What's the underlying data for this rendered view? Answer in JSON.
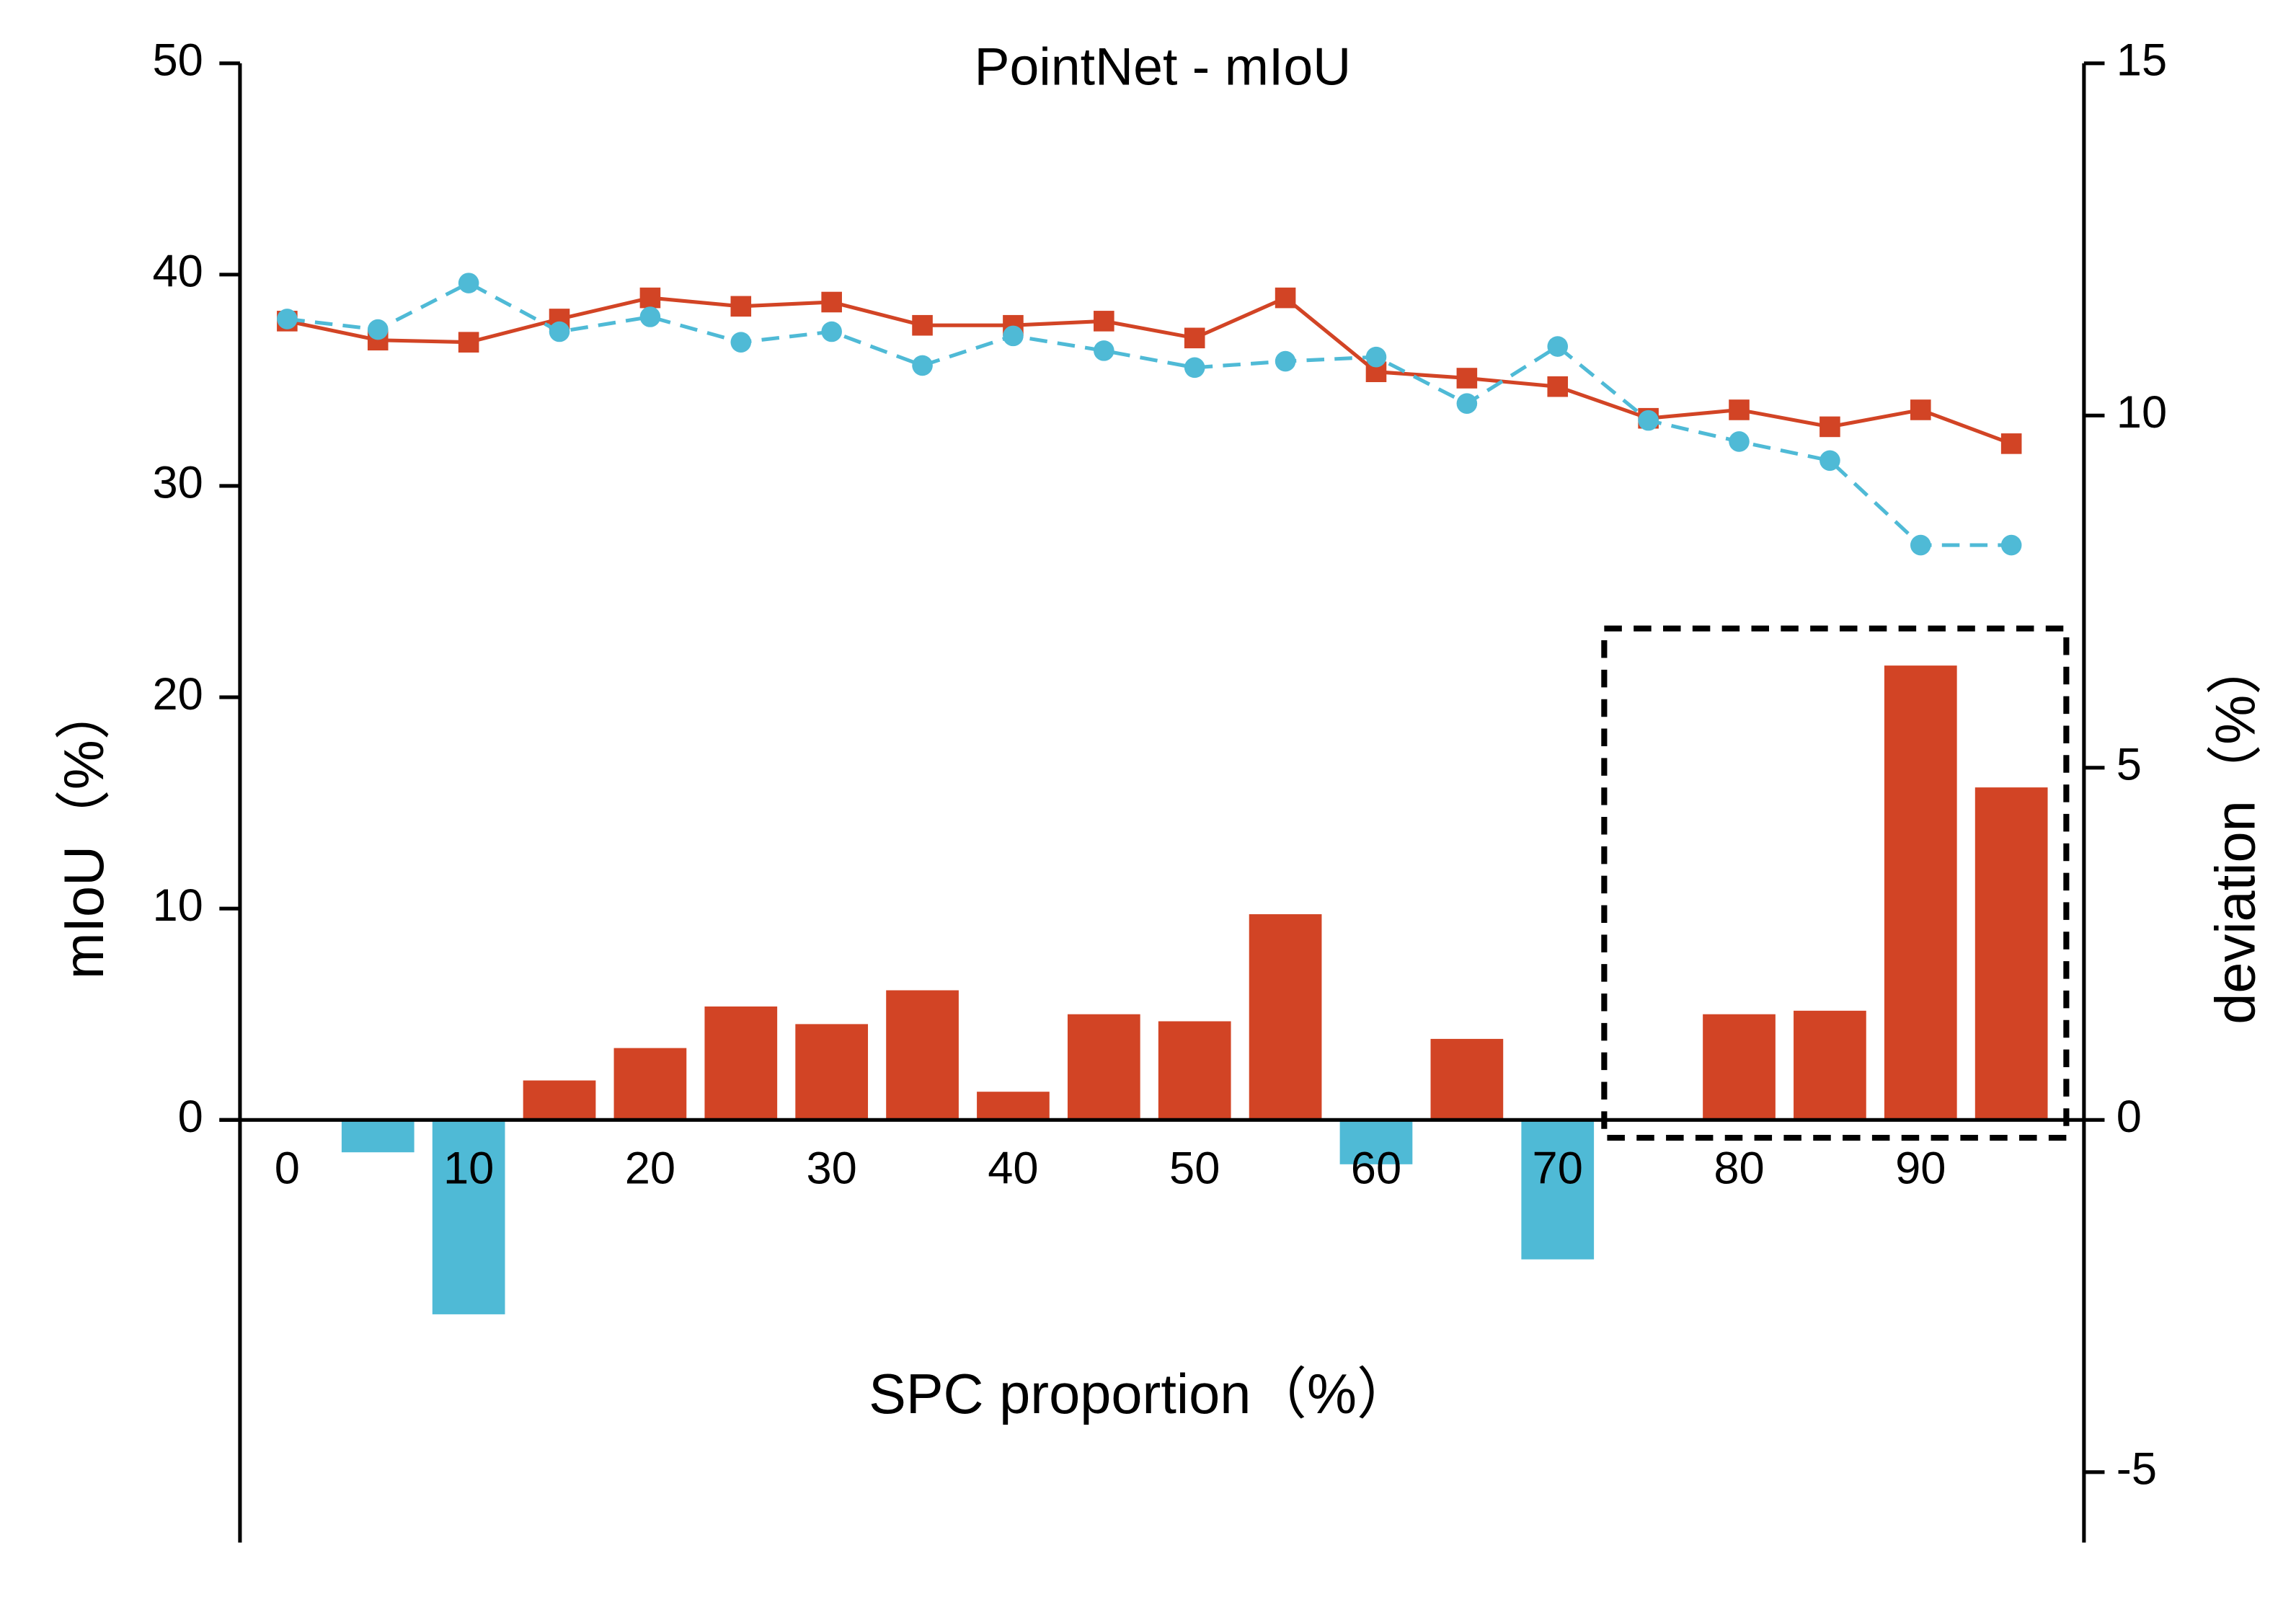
{
  "chart_data": {
    "type": "bar_line",
    "title": "PointNet - mIoU",
    "x_label": "SPC proportion（%）",
    "y_label": "mIoU（%）",
    "y2_label": "deviation（%）",
    "x": [
      0,
      5,
      10,
      15,
      20,
      25,
      30,
      35,
      40,
      45,
      50,
      55,
      60,
      65,
      70,
      75,
      80,
      85,
      90,
      95
    ],
    "xlim": [
      -2.6,
      99
    ],
    "xticks": [
      0,
      10,
      20,
      30,
      40,
      50,
      60,
      70,
      80,
      90
    ],
    "ylim": [
      -20,
      50
    ],
    "yticks": [
      0,
      10,
      20,
      30,
      40,
      50
    ],
    "y2lim": [
      -6,
      15
    ],
    "y2ticks": [
      -5,
      0,
      5,
      10,
      15
    ],
    "series": [
      {
        "type": "line",
        "color": "#d24425",
        "marker": "square",
        "dashed": false,
        "values": [
          37.8,
          36.9,
          36.8,
          37.9,
          38.9,
          38.5,
          38.7,
          37.6,
          37.6,
          37.8,
          37.0,
          38.9,
          35.4,
          35.1,
          34.7,
          33.2,
          33.6,
          32.8,
          33.6,
          32.0
        ]
      },
      {
        "type": "line",
        "color": "#4fbad6",
        "marker": "circle",
        "dashed": true,
        "values": [
          37.9,
          37.4,
          39.6,
          37.3,
          38.0,
          36.8,
          37.3,
          35.7,
          37.1,
          36.4,
          35.6,
          35.9,
          36.1,
          33.9,
          36.6,
          33.1,
          32.1,
          31.2,
          27.2,
          27.2
        ]
      },
      {
        "type": "bar",
        "axis": "y2",
        "color": "#d24425",
        "negative_color": "#4fbad6",
        "values": [
          0,
          -0.46,
          -2.76,
          0.56,
          1.02,
          1.61,
          1.36,
          1.84,
          0.4,
          1.5,
          1.4,
          2.92,
          -0.63,
          1.15,
          -1.98,
          0.02,
          1.5,
          1.55,
          6.45,
          4.72
        ]
      }
    ]
  }
}
